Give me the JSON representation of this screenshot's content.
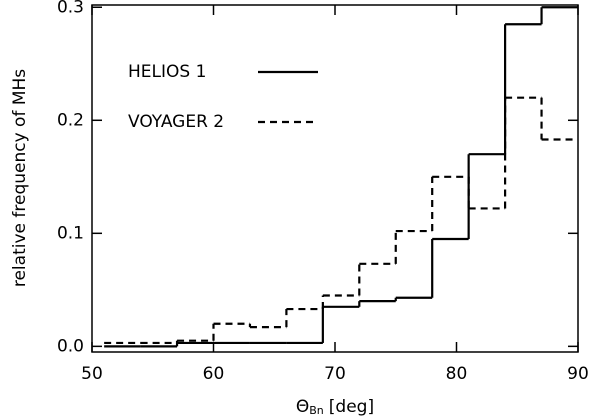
{
  "chart_data": {
    "type": "histogram",
    "xlabel": {
      "symbol": "Θ",
      "subscript": "Bn",
      "unit": "[deg]"
    },
    "ylabel": "relative frequency of MHs",
    "bins": [
      51,
      54,
      57,
      60,
      63,
      66,
      69,
      72,
      75,
      78,
      81,
      84,
      87,
      90
    ],
    "series": [
      {
        "name": "HELIOS 1",
        "color": "#000000",
        "dash": "solid",
        "values": [
          0,
          0,
          0.003,
          0.003,
          0.003,
          0.003,
          0.035,
          0.04,
          0.043,
          0.095,
          0.17,
          0.285,
          0.3
        ]
      },
      {
        "name": "VOYAGER 2",
        "color": "#000000",
        "dash": "dashed",
        "values": [
          0.003,
          0.003,
          0.005,
          0.02,
          0.017,
          0.033,
          0.045,
          0.073,
          0.102,
          0.15,
          0.122,
          0.22,
          0.183
        ]
      }
    ],
    "xlim": [
      50,
      90
    ],
    "xticks": [
      50,
      60,
      70,
      80,
      90
    ],
    "ylim": [
      -0.005,
      0.302
    ],
    "yticks": [
      {
        "value": 0,
        "label": "0.0"
      },
      0.1,
      0.2,
      0.3
    ],
    "legend": "upper-left"
  }
}
